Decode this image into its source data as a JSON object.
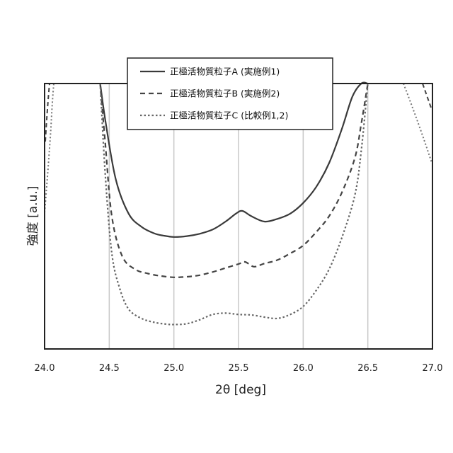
{
  "chart_data": {
    "type": "line",
    "xlabel": "2θ  [deg]",
    "ylabel": "強度 [a.u.]",
    "xlim": [
      24.0,
      27.0
    ],
    "ylim": [
      0,
      1
    ],
    "x_ticks": [
      "24.0",
      "24.5",
      "25.0",
      "25.5",
      "26.0",
      "26.5",
      "27.0"
    ],
    "vertical_gridlines": [
      24.5,
      25.0,
      25.5,
      26.0,
      26.5
    ],
    "legend_position": "top-center",
    "series": [
      {
        "name": "正極活物質粒子A (実施例1)",
        "style": "solid",
        "color": "#3a3a3a",
        "x": [
          24.43,
          24.47,
          24.55,
          24.65,
          24.75,
          24.85,
          24.92,
          25.0,
          25.1,
          25.2,
          25.3,
          25.4,
          25.48,
          25.53,
          25.6,
          25.7,
          25.8,
          25.9,
          26.0,
          26.1,
          26.2,
          26.3,
          26.38,
          26.45,
          26.5
        ],
        "y": [
          1.0,
          0.86,
          0.64,
          0.51,
          0.46,
          0.435,
          0.427,
          0.422,
          0.425,
          0.434,
          0.45,
          0.48,
          0.51,
          0.52,
          0.5,
          0.48,
          0.49,
          0.51,
          0.55,
          0.61,
          0.7,
          0.83,
          0.95,
          1.0,
          1.0
        ]
      },
      {
        "name": "正極活物質粒子B (実施例2)",
        "style": "dashed",
        "color": "#444444",
        "x": [
          24.43,
          24.47,
          24.52,
          24.6,
          24.7,
          24.8,
          24.9,
          25.0,
          25.1,
          25.2,
          25.3,
          25.4,
          25.5,
          25.55,
          25.62,
          25.7,
          25.8,
          25.9,
          26.0,
          26.1,
          26.2,
          26.3,
          26.4,
          26.45,
          26.5
        ],
        "y": [
          1.0,
          0.77,
          0.5,
          0.35,
          0.3,
          0.284,
          0.275,
          0.27,
          0.272,
          0.278,
          0.29,
          0.305,
          0.32,
          0.328,
          0.31,
          0.322,
          0.335,
          0.36,
          0.39,
          0.44,
          0.5,
          0.59,
          0.72,
          0.85,
          1.0
        ]
      },
      {
        "name": "正極活物質粒子C (比較例1,2)",
        "style": "dotted",
        "color": "#666666",
        "x": [
          24.43,
          24.47,
          24.52,
          24.58,
          24.65,
          24.75,
          24.85,
          24.95,
          25.0,
          25.1,
          25.2,
          25.3,
          25.4,
          25.5,
          25.6,
          25.7,
          25.8,
          25.9,
          26.0,
          26.1,
          26.2,
          26.3,
          26.4,
          26.45,
          26.5
        ],
        "y": [
          1.0,
          0.65,
          0.36,
          0.23,
          0.15,
          0.115,
          0.1,
          0.093,
          0.092,
          0.095,
          0.11,
          0.13,
          0.135,
          0.13,
          0.128,
          0.12,
          0.115,
          0.13,
          0.16,
          0.22,
          0.3,
          0.42,
          0.58,
          0.75,
          1.0
        ]
      }
    ]
  }
}
